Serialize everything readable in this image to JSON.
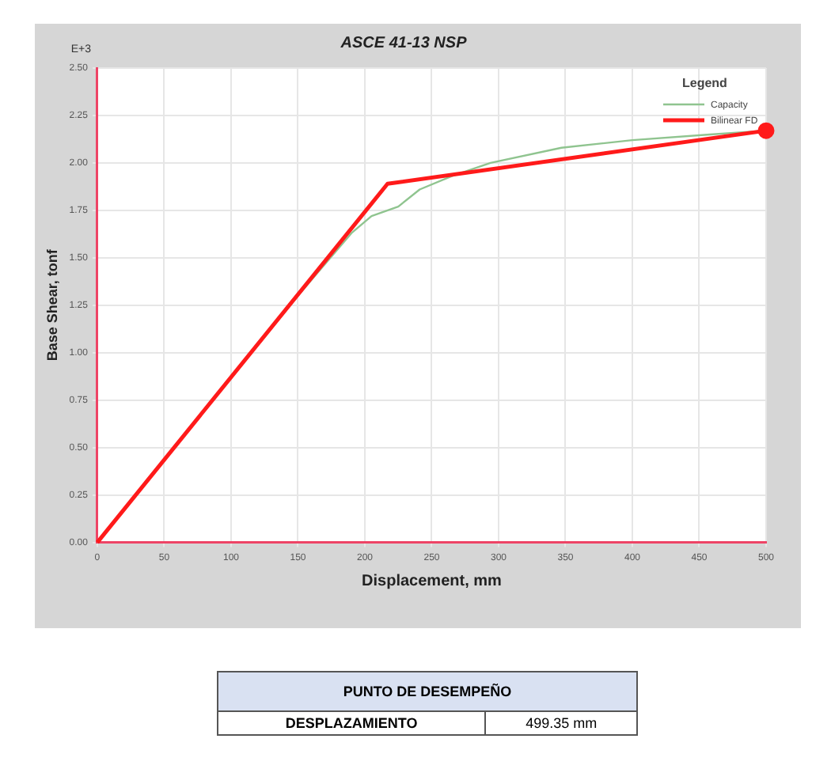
{
  "chart_data": {
    "type": "line",
    "title": "ASCE 41-13 NSP",
    "xlabel": "Displacement, mm",
    "ylabel": "Base Shear, tonf",
    "legend_title": "Legend",
    "legend": "top right",
    "grid": true,
    "marker": "none",
    "line_style": "solid",
    "xlim": [
      0,
      500
    ],
    "xticks": [
      0,
      50,
      100,
      150,
      200,
      250,
      300,
      350,
      400,
      450,
      500
    ],
    "ylim": [
      0,
      2.5
    ],
    "yticks": [
      {
        "value": 0,
        "label": "0.00"
      },
      {
        "value": 0.25,
        "label": "0.25"
      },
      {
        "value": 0.5,
        "label": "0.50"
      },
      {
        "value": 0.75,
        "label": "0.75"
      },
      {
        "value": 1,
        "label": "1.00"
      },
      {
        "value": 1.25,
        "label": "1.25"
      },
      {
        "value": 1.5,
        "label": "1.50"
      },
      {
        "value": 1.75,
        "label": "1.75"
      },
      {
        "value": 2,
        "label": "2.00"
      },
      {
        "value": 2.25,
        "label": "2.25"
      },
      {
        "value": 2.5,
        "label": "2.50"
      }
    ],
    "series": [
      {
        "type": "line",
        "name": "Capacity",
        "color": "#8fc48f",
        "x": [
          0,
          150,
          190,
          205,
          225,
          241,
          265,
          294,
          347,
          400,
          458,
          500
        ],
        "values": [
          0,
          1.3,
          1.63,
          1.72,
          1.77,
          1.86,
          1.93,
          2.0,
          2.08,
          2.12,
          2.15,
          2.17
        ]
      },
      {
        "type": "line",
        "name": "Bilinear FD",
        "color": "#ff1a1a",
        "x": [
          0,
          217,
          500
        ],
        "values": [
          0,
          1.89,
          2.17
        ]
      },
      {
        "type": "scatter",
        "marker": "circle",
        "color": "#ff1a1a",
        "x": [
          500
        ],
        "values": [
          2.17
        ]
      }
    ],
    "annotations": [
      "E+3",
      "PUNTO DE DESEMPEÑO",
      "DESPLAZAMIENTO",
      "499.35 mm"
    ]
  }
}
